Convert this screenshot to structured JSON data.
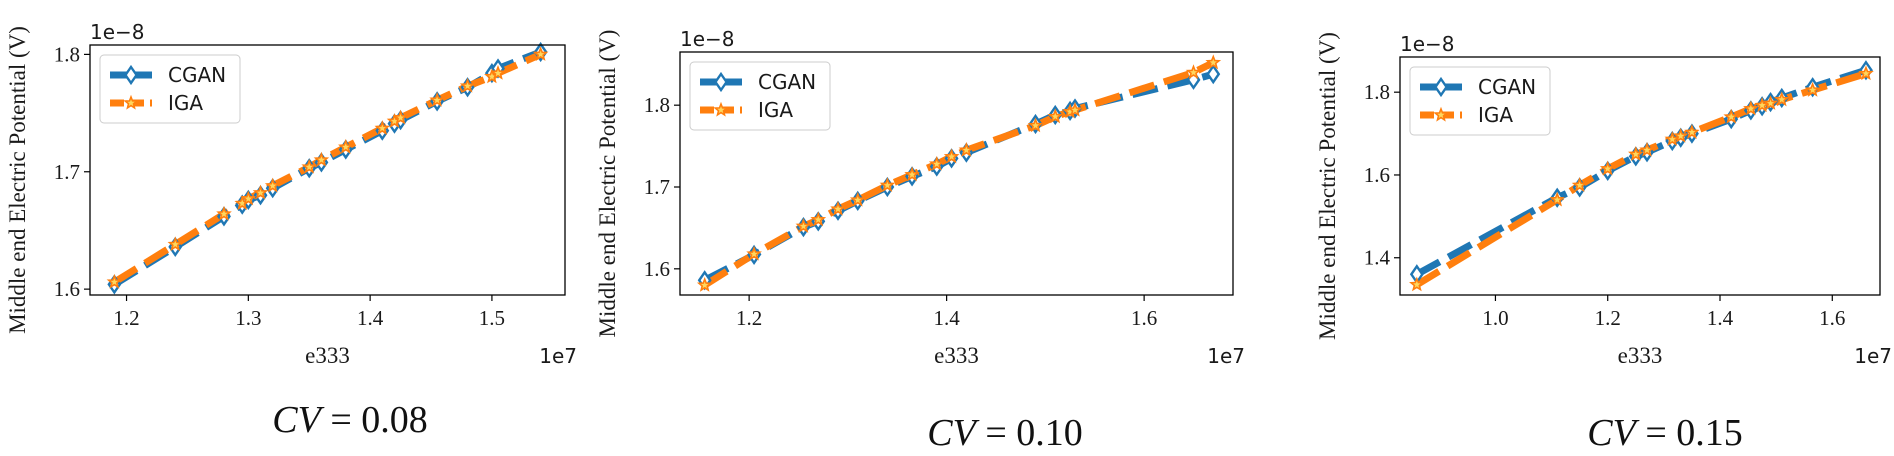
{
  "colors": {
    "cgan": "#1f77b4",
    "iga": "#ff7f0e",
    "star": "#ffd75e"
  },
  "chart_data": [
    {
      "type": "line",
      "caption_var": "CV",
      "caption_val": "= 0.08",
      "xlabel": "e333",
      "ylabel": "Middle end Electric Potential (V)",
      "x_offset": "1e7",
      "y_offset": "1e−8",
      "xlim": [
        1.17,
        1.56
      ],
      "ylim": [
        1.595,
        1.808
      ],
      "xticks": [
        1.2,
        1.3,
        1.4,
        1.5
      ],
      "xtick_labels": [
        "1.2",
        "1.3",
        "1.4",
        "1.5"
      ],
      "yticks": [
        1.6,
        1.7,
        1.8
      ],
      "ytick_labels": [
        "1.6",
        "1.7",
        "1.8"
      ],
      "legend": "top-left",
      "x": [
        1.19,
        1.24,
        1.28,
        1.295,
        1.3,
        1.31,
        1.32,
        1.35,
        1.36,
        1.38,
        1.41,
        1.42,
        1.425,
        1.455,
        1.48,
        1.5,
        1.505,
        1.54
      ],
      "series": [
        {
          "name": "CGAN",
          "values": [
            1.604,
            1.636,
            1.662,
            1.672,
            1.676,
            1.68,
            1.686,
            1.703,
            1.708,
            1.719,
            1.735,
            1.741,
            1.744,
            1.76,
            1.772,
            1.784,
            1.788,
            1.802
          ]
        },
        {
          "name": "IGA",
          "values": [
            1.606,
            1.638,
            1.664,
            1.673,
            1.677,
            1.682,
            1.688,
            1.704,
            1.71,
            1.721,
            1.737,
            1.743,
            1.746,
            1.761,
            1.773,
            1.781,
            1.784,
            1.8
          ]
        }
      ]
    },
    {
      "type": "line",
      "caption_var": "CV",
      "caption_val": "= 0.10",
      "xlabel": "e333",
      "ylabel": "Middle end Electric Potential (V)",
      "x_offset": "1e7",
      "y_offset": "1e−8",
      "xlim": [
        1.13,
        1.69
      ],
      "ylim": [
        1.568,
        1.865
      ],
      "xticks": [
        1.2,
        1.4,
        1.6
      ],
      "xtick_labels": [
        "1.2",
        "1.4",
        "1.6"
      ],
      "yticks": [
        1.6,
        1.7,
        1.8
      ],
      "ytick_labels": [
        "1.6",
        "1.7",
        "1.8"
      ],
      "legend": "top-left",
      "x": [
        1.155,
        1.205,
        1.255,
        1.27,
        1.29,
        1.31,
        1.34,
        1.365,
        1.39,
        1.405,
        1.42,
        1.49,
        1.51,
        1.525,
        1.53,
        1.65,
        1.67
      ],
      "series": [
        {
          "name": "CGAN",
          "values": [
            1.586,
            1.617,
            1.651,
            1.658,
            1.671,
            1.683,
            1.7,
            1.713,
            1.725,
            1.735,
            1.742,
            1.777,
            1.788,
            1.793,
            1.796,
            1.831,
            1.838
          ]
        },
        {
          "name": "IGA",
          "values": [
            1.58,
            1.618,
            1.652,
            1.66,
            1.673,
            1.684,
            1.702,
            1.715,
            1.728,
            1.737,
            1.745,
            1.775,
            1.786,
            1.792,
            1.794,
            1.84,
            1.852
          ]
        }
      ]
    },
    {
      "type": "line",
      "caption_var": "CV",
      "caption_val": "= 0.15",
      "xlabel": "e333",
      "ylabel": "Middle end Electric Potential (V)",
      "x_offset": "1e7",
      "y_offset": "1e−8",
      "xlim": [
        0.83,
        1.685
      ],
      "ylim": [
        1.31,
        1.885
      ],
      "xticks": [
        1.0,
        1.2,
        1.4,
        1.6
      ],
      "xtick_labels": [
        "1.0",
        "1.2",
        "1.4",
        "1.6"
      ],
      "yticks": [
        1.4,
        1.6,
        1.8
      ],
      "ytick_labels": [
        "1.4",
        "1.6",
        "1.8"
      ],
      "legend": "top-left",
      "x": [
        0.86,
        1.11,
        1.15,
        1.2,
        1.25,
        1.27,
        1.315,
        1.33,
        1.35,
        1.42,
        1.455,
        1.475,
        1.49,
        1.51,
        1.565,
        1.66
      ],
      "series": [
        {
          "name": "CGAN",
          "values": [
            1.36,
            1.545,
            1.57,
            1.61,
            1.645,
            1.655,
            1.682,
            1.69,
            1.7,
            1.735,
            1.756,
            1.766,
            1.776,
            1.786,
            1.812,
            1.853
          ]
        },
        {
          "name": "IGA",
          "values": [
            1.335,
            1.54,
            1.575,
            1.615,
            1.65,
            1.66,
            1.686,
            1.694,
            1.703,
            1.74,
            1.76,
            1.768,
            1.773,
            1.782,
            1.805,
            1.845
          ]
        }
      ]
    }
  ]
}
